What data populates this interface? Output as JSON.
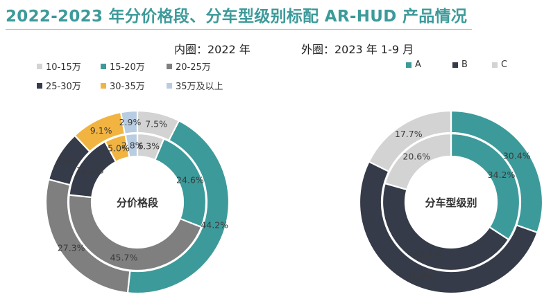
{
  "title": "2022-2023 年分价格段、分车型级别标配 AR-HUD 产品情况",
  "ring_labels": {
    "inner": "内圈：2022 年",
    "outer": "外圈：2023 年 1-9 月"
  },
  "chart_data": [
    {
      "type": "pie",
      "subtype": "double-donut",
      "center_label": "分价格段",
      "categories": [
        "10-15万",
        "15-20万",
        "20-25万",
        "25-30万",
        "30-35万",
        "35万及以上"
      ],
      "colors": [
        "#d3d3d3",
        "#3d9a9a",
        "#7f7f7f",
        "#353b48",
        "#f2b441",
        "#b8cde2"
      ],
      "series": [
        {
          "ring": "inner",
          "values": [
            6.3,
            24.6,
            45.7,
            15.5,
            5.0,
            2.8
          ],
          "labels": [
            "6.3%",
            "24.6%",
            "45.7%",
            "15.5%",
            "5.0%",
            "2.8%"
          ]
        },
        {
          "ring": "outer",
          "values": [
            7.5,
            44.2,
            27.3,
            9.0,
            9.1,
            2.9
          ],
          "labels": [
            "7.5%",
            "44.2%",
            "27.3%",
            "9.0%",
            "9.1%",
            "2.9%"
          ]
        }
      ],
      "legend_position": "top"
    },
    {
      "type": "pie",
      "subtype": "double-donut",
      "center_label": "分车型级别",
      "categories": [
        "A",
        "B",
        "C"
      ],
      "colors": [
        "#3d9a9a",
        "#353b48",
        "#d3d3d3"
      ],
      "series": [
        {
          "ring": "inner",
          "values": [
            34.2,
            45.2,
            20.6
          ],
          "labels": [
            "34.2%",
            "45.2%",
            "20.6%"
          ]
        },
        {
          "ring": "outer",
          "values": [
            30.4,
            51.9,
            17.7
          ],
          "labels": [
            "30.4%",
            "51.9%",
            "17.7%"
          ]
        }
      ],
      "legend_position": "top"
    }
  ]
}
